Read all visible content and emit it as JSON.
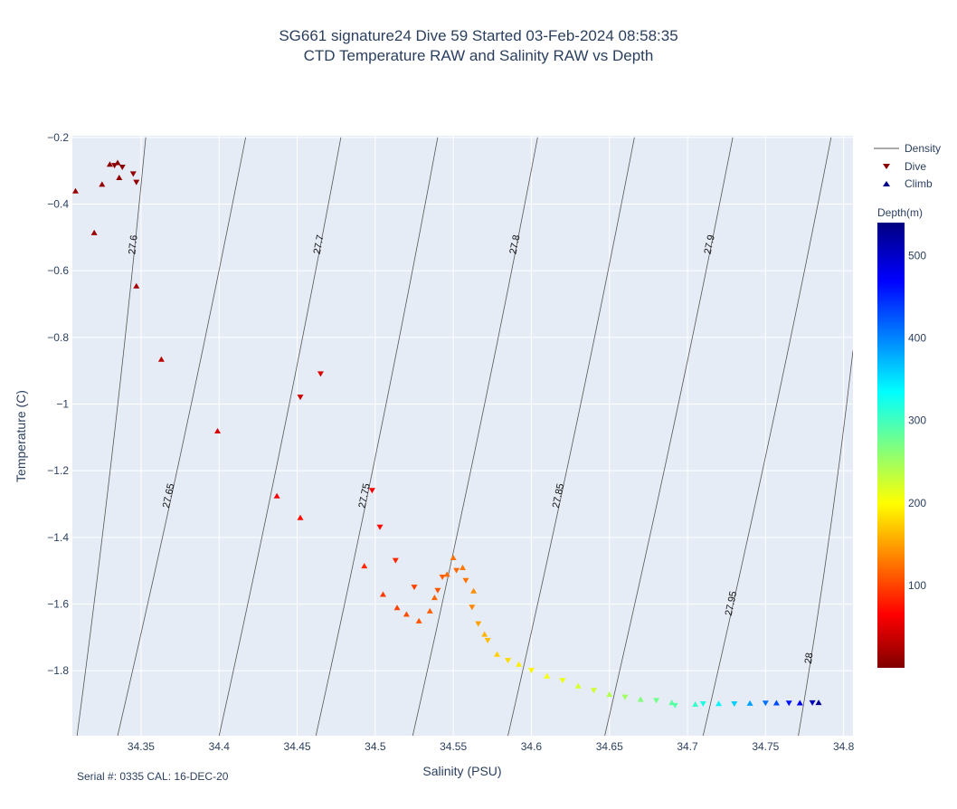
{
  "chart_data": {
    "type": "scatter",
    "title": "SG661 signature24 Dive 59 Started 03-Feb-2024 08:58:35",
    "subtitle": "CTD Temperature RAW and Salinity RAW vs Depth",
    "xlabel": "Salinity (PSU)",
    "ylabel": "Temperature (C)",
    "xlim": [
      34.306,
      34.806
    ],
    "ylim": [
      -1.995,
      -0.195
    ],
    "x_ticks": [
      34.35,
      34.4,
      34.45,
      34.5,
      34.55,
      34.6,
      34.65,
      34.7,
      34.75,
      34.8
    ],
    "x_tick_labels": [
      "34.35",
      "34.4",
      "34.45",
      "34.5",
      "34.55",
      "34.6",
      "34.65",
      "34.7",
      "34.75",
      "34.8"
    ],
    "y_ticks": [
      -0.2,
      -0.4,
      -0.6,
      -0.8,
      -1.0,
      -1.2,
      -1.4,
      -1.6,
      -1.8
    ],
    "y_tick_labels": [
      "−0.2",
      "−0.4",
      "−0.6",
      "−0.8",
      "−1",
      "−1.2",
      "−1.4",
      "−1.6",
      "−1.8"
    ],
    "grid": true,
    "legend_position": "right",
    "legend": [
      {
        "name": "Density",
        "symbol": "line"
      },
      {
        "name": "Dive",
        "symbol": "triangle-down"
      },
      {
        "name": "Climb",
        "symbol": "triangle-up"
      }
    ],
    "colorbar": {
      "title": "Depth(m)",
      "range": [
        0,
        540
      ],
      "ticks": [
        100,
        200,
        300,
        400,
        500
      ],
      "colorscale": "jet-reversed"
    },
    "density_contours": [
      {
        "label": "27.6",
        "points": [
          [
            34.353,
            -0.2
          ],
          [
            34.309,
            -1.995
          ]
        ]
      },
      {
        "label": "27.65",
        "points": [
          [
            34.417,
            -0.2
          ],
          [
            34.335,
            -1.995
          ]
        ]
      },
      {
        "label": "27.7",
        "points": [
          [
            34.478,
            -0.2
          ],
          [
            34.4,
            -1.995
          ]
        ]
      },
      {
        "label": "27.75",
        "points": [
          [
            34.54,
            -0.2
          ],
          [
            34.462,
            -1.995
          ]
        ]
      },
      {
        "label": "27.8",
        "points": [
          [
            34.604,
            -0.2
          ],
          [
            34.524,
            -1.995
          ]
        ]
      },
      {
        "label": "27.85",
        "points": [
          [
            34.666,
            -0.2
          ],
          [
            34.585,
            -1.995
          ]
        ]
      },
      {
        "label": "27.9",
        "points": [
          [
            34.729,
            -0.2
          ],
          [
            34.647,
            -1.995
          ]
        ]
      },
      {
        "label": "27.95",
        "points": [
          [
            34.792,
            -0.2
          ],
          [
            34.71,
            -1.995
          ]
        ]
      },
      {
        "label": "28",
        "points": [
          [
            34.806,
            -0.84
          ],
          [
            34.771,
            -1.995
          ]
        ]
      }
    ],
    "series": [
      {
        "name": "Dive",
        "marker": "triangle-down",
        "points": [
          {
            "x": 34.333,
            "y": -0.285,
            "depth": 5
          },
          {
            "x": 34.338,
            "y": -0.29,
            "depth": 6
          },
          {
            "x": 34.345,
            "y": -0.31,
            "depth": 8
          },
          {
            "x": 34.347,
            "y": -0.335,
            "depth": 10
          },
          {
            "x": 34.452,
            "y": -0.98,
            "depth": 40
          },
          {
            "x": 34.465,
            "y": -0.91,
            "depth": 45
          },
          {
            "x": 34.498,
            "y": -1.26,
            "depth": 60
          },
          {
            "x": 34.503,
            "y": -1.37,
            "depth": 70
          },
          {
            "x": 34.513,
            "y": -1.47,
            "depth": 85
          },
          {
            "x": 34.525,
            "y": -1.55,
            "depth": 100
          },
          {
            "x": 34.54,
            "y": -1.56,
            "depth": 110
          },
          {
            "x": 34.543,
            "y": -1.52,
            "depth": 115
          },
          {
            "x": 34.552,
            "y": -1.5,
            "depth": 120
          },
          {
            "x": 34.558,
            "y": -1.53,
            "depth": 125
          },
          {
            "x": 34.562,
            "y": -1.61,
            "depth": 135
          },
          {
            "x": 34.566,
            "y": -1.66,
            "depth": 150
          },
          {
            "x": 34.572,
            "y": -1.71,
            "depth": 165
          },
          {
            "x": 34.585,
            "y": -1.77,
            "depth": 180
          },
          {
            "x": 34.6,
            "y": -1.8,
            "depth": 195
          },
          {
            "x": 34.62,
            "y": -1.83,
            "depth": 210
          },
          {
            "x": 34.64,
            "y": -1.86,
            "depth": 225
          },
          {
            "x": 34.66,
            "y": -1.88,
            "depth": 250
          },
          {
            "x": 34.68,
            "y": -1.89,
            "depth": 275
          },
          {
            "x": 34.692,
            "y": -1.905,
            "depth": 290
          },
          {
            "x": 34.71,
            "y": -1.9,
            "depth": 320
          },
          {
            "x": 34.73,
            "y": -1.9,
            "depth": 360
          },
          {
            "x": 34.75,
            "y": -1.898,
            "depth": 410
          },
          {
            "x": 34.765,
            "y": -1.898,
            "depth": 460
          },
          {
            "x": 34.78,
            "y": -1.897,
            "depth": 510
          }
        ]
      },
      {
        "name": "Climb",
        "marker": "triangle-up",
        "points": [
          {
            "x": 34.308,
            "y": -0.36,
            "depth": 12
          },
          {
            "x": 34.32,
            "y": -0.485,
            "depth": 15
          },
          {
            "x": 34.325,
            "y": -0.34,
            "depth": 10
          },
          {
            "x": 34.33,
            "y": -0.28,
            "depth": 5
          },
          {
            "x": 34.335,
            "y": -0.275,
            "depth": 4
          },
          {
            "x": 34.336,
            "y": -0.32,
            "depth": 8
          },
          {
            "x": 34.347,
            "y": -0.645,
            "depth": 20
          },
          {
            "x": 34.363,
            "y": -0.865,
            "depth": 30
          },
          {
            "x": 34.399,
            "y": -1.08,
            "depth": 45
          },
          {
            "x": 34.437,
            "y": -1.275,
            "depth": 60
          },
          {
            "x": 34.452,
            "y": -1.34,
            "depth": 70
          },
          {
            "x": 34.493,
            "y": -1.485,
            "depth": 85
          },
          {
            "x": 34.505,
            "y": -1.57,
            "depth": 95
          },
          {
            "x": 34.514,
            "y": -1.61,
            "depth": 100
          },
          {
            "x": 34.52,
            "y": -1.63,
            "depth": 105
          },
          {
            "x": 34.528,
            "y": -1.65,
            "depth": 110
          },
          {
            "x": 34.535,
            "y": -1.62,
            "depth": 115
          },
          {
            "x": 34.538,
            "y": -1.58,
            "depth": 118
          },
          {
            "x": 34.546,
            "y": -1.51,
            "depth": 122
          },
          {
            "x": 34.55,
            "y": -1.46,
            "depth": 125
          },
          {
            "x": 34.556,
            "y": -1.49,
            "depth": 128
          },
          {
            "x": 34.563,
            "y": -1.56,
            "depth": 140
          },
          {
            "x": 34.57,
            "y": -1.69,
            "depth": 160
          },
          {
            "x": 34.578,
            "y": -1.75,
            "depth": 175
          },
          {
            "x": 34.592,
            "y": -1.78,
            "depth": 190
          },
          {
            "x": 34.61,
            "y": -1.815,
            "depth": 205
          },
          {
            "x": 34.63,
            "y": -1.845,
            "depth": 220
          },
          {
            "x": 34.65,
            "y": -1.87,
            "depth": 240
          },
          {
            "x": 34.67,
            "y": -1.885,
            "depth": 265
          },
          {
            "x": 34.69,
            "y": -1.895,
            "depth": 285
          },
          {
            "x": 34.705,
            "y": -1.9,
            "depth": 305
          },
          {
            "x": 34.72,
            "y": -1.898,
            "depth": 340
          },
          {
            "x": 34.74,
            "y": -1.897,
            "depth": 385
          },
          {
            "x": 34.757,
            "y": -1.896,
            "depth": 430
          },
          {
            "x": 34.772,
            "y": -1.896,
            "depth": 480
          },
          {
            "x": 34.784,
            "y": -1.895,
            "depth": 530
          }
        ]
      }
    ]
  },
  "footer": "Serial #: 0335  CAL: 16-DEC-20"
}
